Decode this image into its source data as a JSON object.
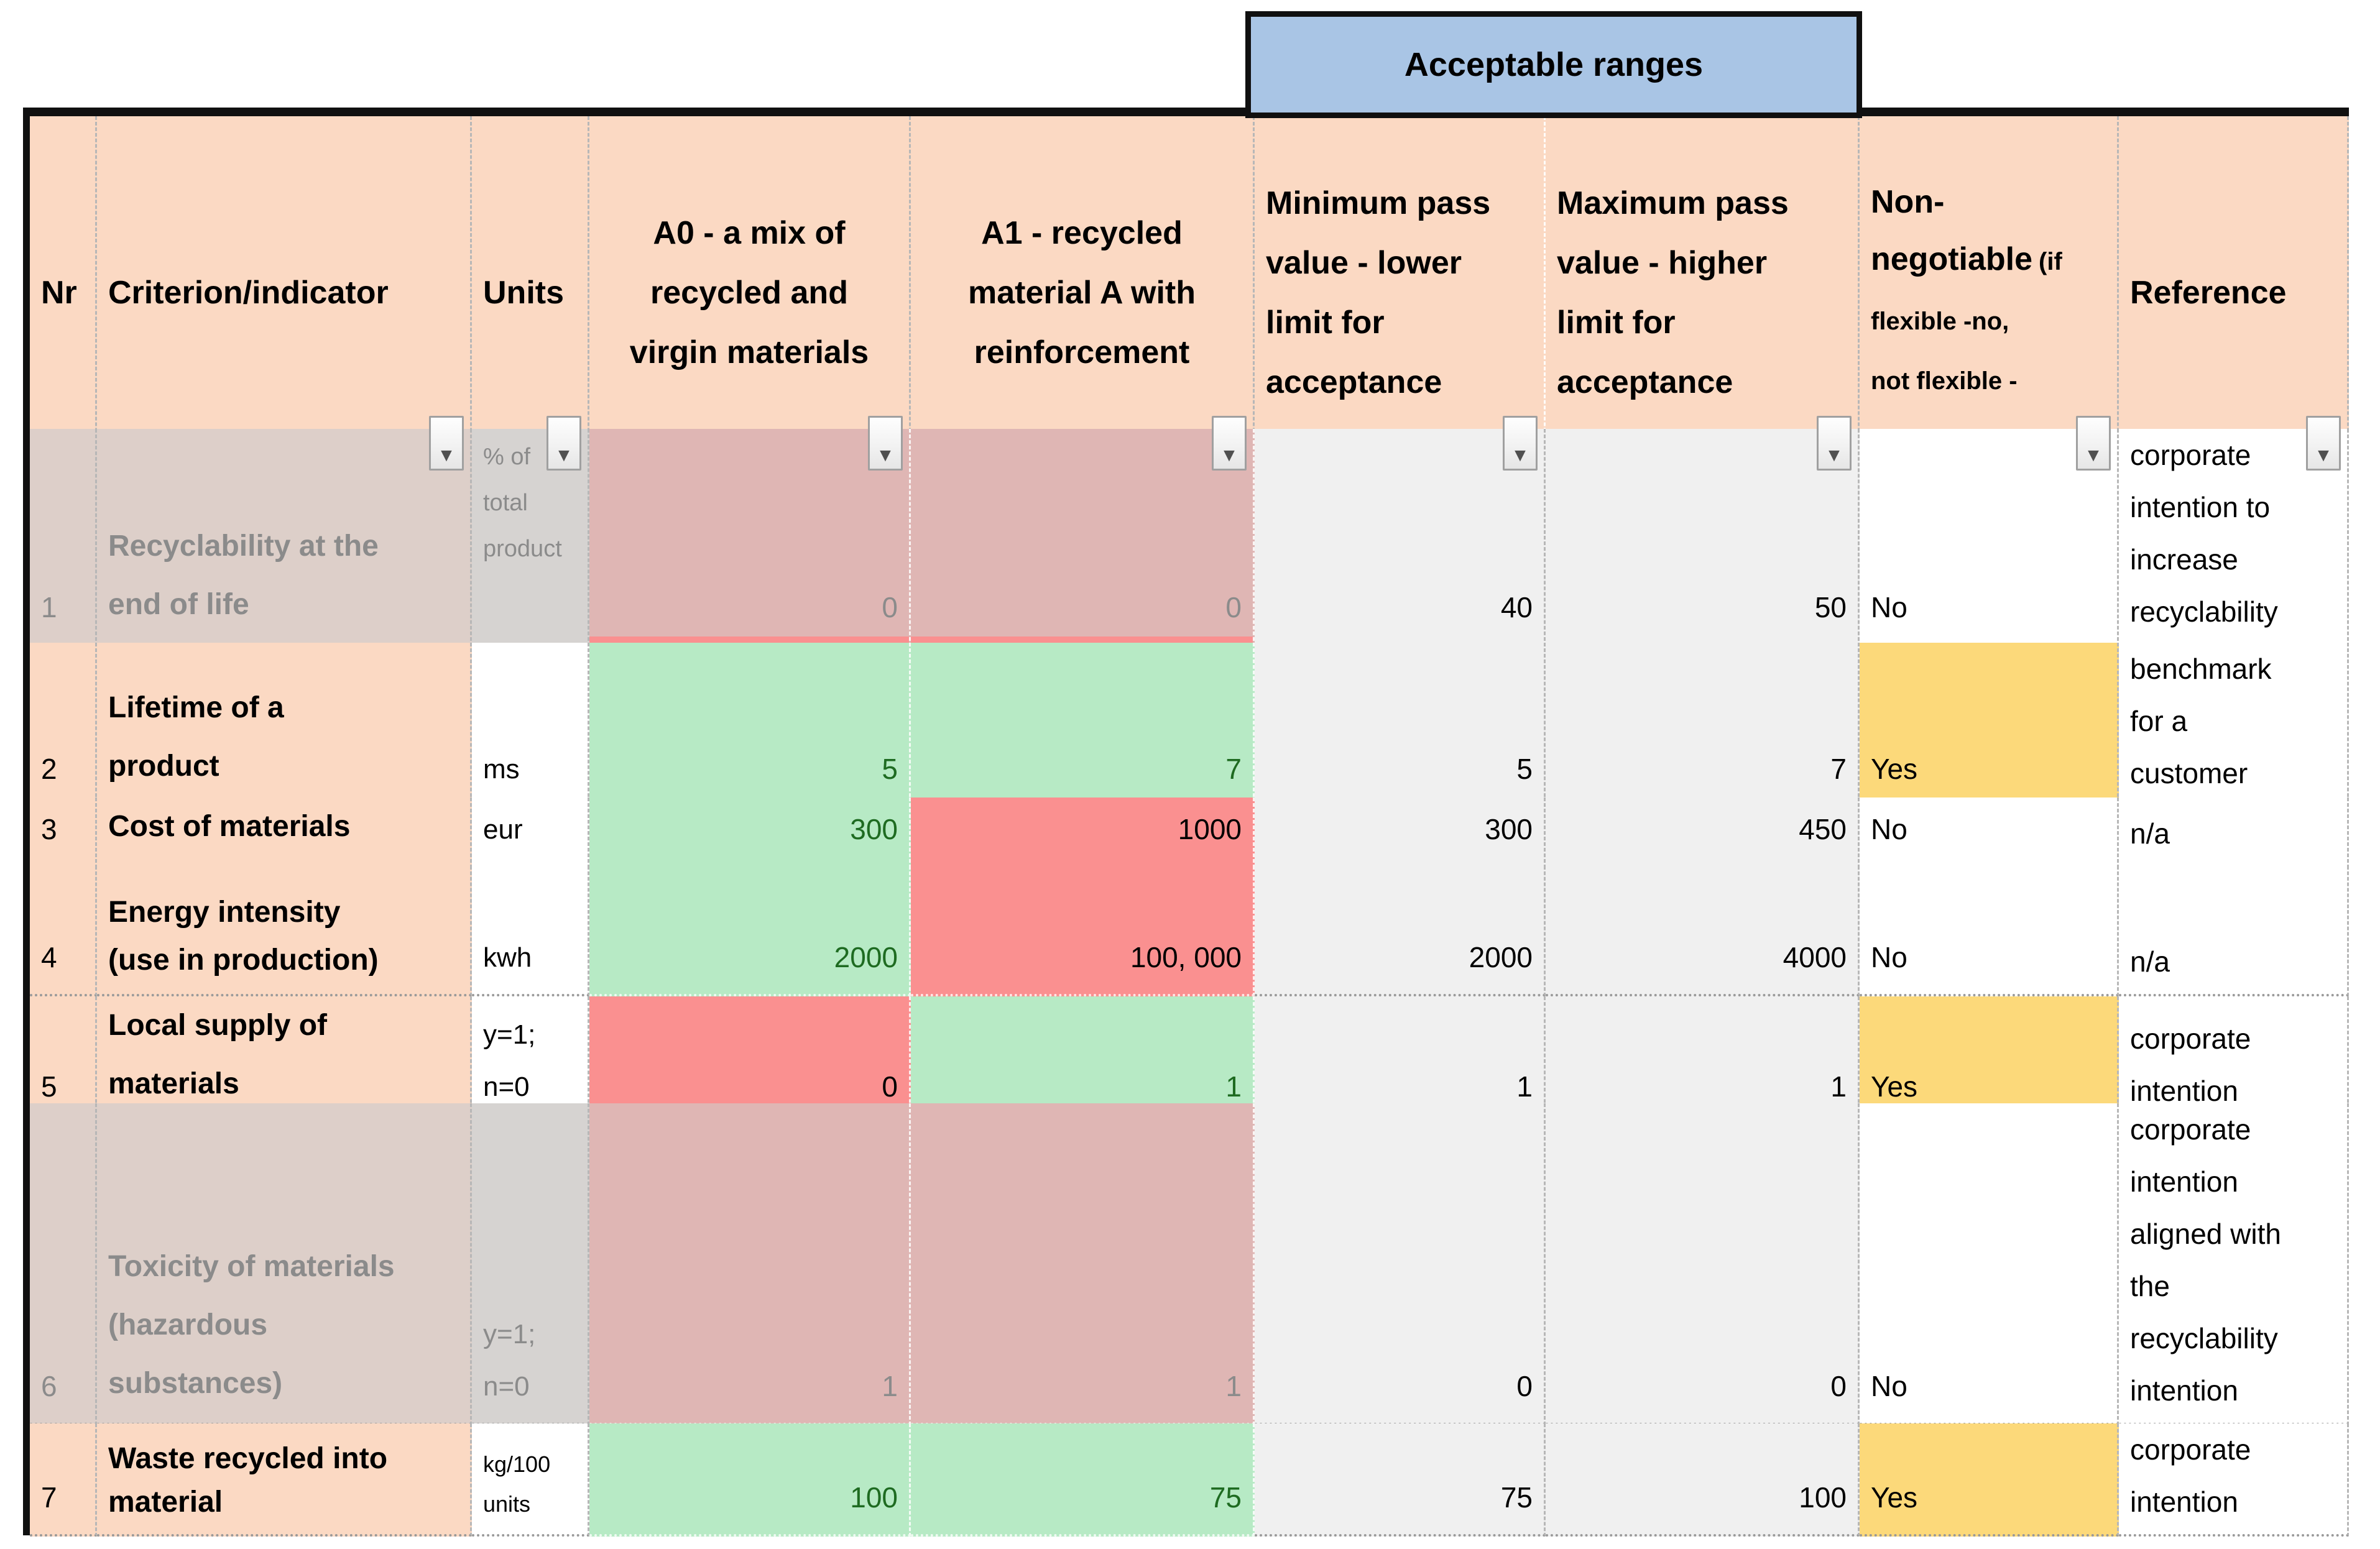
{
  "banner": {
    "label": "Acceptable ranges"
  },
  "filter_icon": "▼",
  "header": {
    "nr": "Nr",
    "criterion": "Criterion/indicator",
    "units": "Units",
    "a0": "A0 - a mix of\nrecycled and\nvirgin materials",
    "a1": "A1 - recycled\nmaterial A with\nreinforcement",
    "min": "Minimum pass\nvalue - lower\nlimit for\nacceptance",
    "max": "Maximum pass\nvalue - higher\nlimit for\nacceptance",
    "non_negotiable_main": "Non-\nnegotiable",
    "non_negotiable_note": "(if\nflexible -no,\nnot flexible -\nyes)",
    "reference": "Reference"
  },
  "rows": [
    {
      "nr": "1",
      "criterion": "Recyclability at the\nend of life",
      "units": "% of\ntotal\nproduct",
      "a0": "0",
      "a1": "0",
      "min": "40",
      "max": "50",
      "non_negotiable": "No",
      "reference": "corporate\nintention to\nincrease\nrecyclability",
      "disabled": true,
      "a0_status": "bad-muted",
      "a1_status": "bad-muted"
    },
    {
      "nr": "2",
      "criterion": "Lifetime of a\nproduct",
      "units": "ms",
      "a0": "5",
      "a1": "7",
      "min": "5",
      "max": "7",
      "non_negotiable": "Yes",
      "reference": "benchmark\nfor a\ncustomer",
      "disabled": false,
      "a0_status": "good",
      "a1_status": "good"
    },
    {
      "nr": "3",
      "criterion": "Cost of materials",
      "units": "eur",
      "a0": "300",
      "a1": "1000",
      "min": "300",
      "max": "450",
      "non_negotiable": "No",
      "reference": "n/a",
      "disabled": false,
      "a0_status": "good",
      "a1_status": "bad"
    },
    {
      "nr": "4",
      "criterion": "Energy intensity\n(use in production)",
      "units": "kwh",
      "a0": "2000",
      "a1": "100, 000",
      "min": "2000",
      "max": "4000",
      "non_negotiable": "No",
      "reference": "n/a",
      "disabled": false,
      "a0_status": "good",
      "a1_status": "bad"
    },
    {
      "nr": "5",
      "criterion": "Local supply of\nmaterials",
      "units": "y=1;\nn=0",
      "a0": "0",
      "a1": "1",
      "min": "1",
      "max": "1",
      "non_negotiable": "Yes",
      "reference": "corporate\nintention",
      "disabled": false,
      "a0_status": "bad",
      "a1_status": "good"
    },
    {
      "nr": "6",
      "criterion": "Toxicity of materials\n(hazardous\nsubstances)",
      "units": "y=1;\nn=0",
      "a0": "1",
      "a1": "1",
      "min": "0",
      "max": "0",
      "non_negotiable": "No",
      "reference": "corporate\nintention\naligned with\nthe\nrecyclability\nintention",
      "disabled": true,
      "a0_status": "bad-muted",
      "a1_status": "bad-muted"
    },
    {
      "nr": "7",
      "criterion": "Waste recycled into\nmaterial",
      "units": "kg/100\nunits",
      "a0": "100",
      "a1": "75",
      "min": "75",
      "max": "100",
      "non_negotiable": "Yes",
      "reference": "corporate\nintention",
      "disabled": false,
      "a0_status": "good",
      "a1_status": "good"
    }
  ],
  "colors": {
    "header_peach": "#fbd9c3",
    "accept_blue": "#a9c5e5",
    "header_yellow": "#fcd96e",
    "pass_green": "#b7eac5",
    "fail_red": "#fa9090",
    "muted_red": "#dfb6b4",
    "neutral_gray": "#f0f0f0"
  }
}
